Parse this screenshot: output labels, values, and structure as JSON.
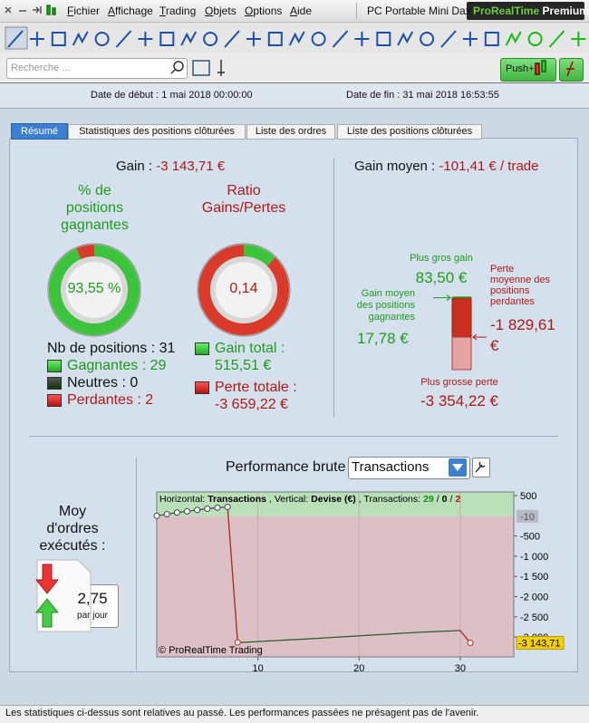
{
  "menu": {
    "items": [
      "Fichier",
      "Affichage",
      "Trading",
      "Objets",
      "Options",
      "Aide"
    ],
    "workspace": "PC Portable Mini Dax",
    "brand": "ProRealTime",
    "edition": "Premium"
  },
  "search": {
    "placeholder": "Recherche ...",
    "push_button": "Push+"
  },
  "dates": {
    "start_label": "Date de début :",
    "start": "1 mai 2018 00:00:00",
    "end_label": "Date de fin :",
    "end": "31 mai 2018 16:53:55"
  },
  "tabs": [
    "Résumé",
    "Statistiques des positions clôturées",
    "Liste des ordres",
    "Liste des positions clôturées"
  ],
  "summary": {
    "gain": {
      "label": "Gain :",
      "value": "-3 143,71 €"
    },
    "win_rate": {
      "label": "% de positions gagnantes",
      "value": 93.55,
      "value_label": "93,55 %"
    },
    "ratio": {
      "label": "Ratio Gains/Pertes",
      "value": 0.14,
      "value_label": "0,14"
    },
    "positions": {
      "label": "Nb de positions :",
      "value": 31
    },
    "winners": {
      "label": "Gagnantes :",
      "value": 29
    },
    "neutral": {
      "label": "Neutres :",
      "value": 0
    },
    "losers": {
      "label": "Perdantes :",
      "value": 2
    },
    "total_gain": {
      "label": "Gain total :",
      "value": "515,51 €"
    },
    "total_loss": {
      "label": "Perte totale :",
      "value": "-3 659,22 €"
    }
  },
  "average": {
    "gain": {
      "label": "Gain moyen :",
      "value": "-101,41 € / trade"
    },
    "max_gain": {
      "label": "Plus gros gain",
      "value": 83.5,
      "value_label": "83,50 €"
    },
    "avg_win": {
      "label": "Gain moyen des positions gagnantes",
      "value": 17.78,
      "value_label": "17,78 €"
    },
    "avg_loss": {
      "label": "Perte moyenne des positions perdantes",
      "value": -1829.61,
      "value_label": "-1 829,61 €"
    },
    "max_loss": {
      "label": "Plus grosse perte",
      "value": -3354.22,
      "value_label": "-3 354,22 €"
    }
  },
  "orders": {
    "label": "Moy d'ordres exécutés :",
    "value": "2,75",
    "unit": "par jour"
  },
  "chart_data": {
    "type": "line",
    "title": "Performance brute",
    "selector": "Transactions",
    "header": {
      "horizontal_label": "Horizontal:",
      "horizontal": "Transactions",
      "vertical_label": ", Vertical:",
      "vertical": "Devise (€)",
      "count_label": ", Transactions:",
      "winners": 29,
      "neutral": 0,
      "losers": 2,
      "separator": "/"
    },
    "credit": "© ProRealTime Trading",
    "x": [
      0,
      1,
      2,
      3,
      4,
      5,
      6,
      7,
      8,
      9,
      10,
      11,
      12,
      13,
      14,
      15,
      16,
      17,
      18,
      19,
      20,
      21,
      22,
      23,
      24,
      25,
      26,
      27,
      28,
      29,
      30,
      31
    ],
    "values": [
      0,
      40,
      80,
      110,
      145,
      175,
      200,
      220,
      -3134,
      -3125,
      -3110,
      -3098,
      -3085,
      -3070,
      -3058,
      -3045,
      -3030,
      -3015,
      -3000,
      -2985,
      -2970,
      -2955,
      -2940,
      -2925,
      -2910,
      -2895,
      -2880,
      -2870,
      -2860,
      -2850,
      -2839,
      -3143.71
    ],
    "color": "#1f5a1f",
    "drop_color": "#c02828",
    "xlim": [
      0,
      35.3
    ],
    "ylim": [
      -3490,
      590
    ],
    "xticks": [
      10,
      20,
      30
    ],
    "yticks": [
      500,
      -500,
      {
        "value": -1000,
        "label": "-1 000"
      },
      {
        "value": -1500,
        "label": "-1 500"
      },
      {
        "value": -2000,
        "label": "-2 000"
      },
      {
        "value": -2500,
        "label": "-2 500"
      },
      {
        "value": -3000,
        "label": "-3 000"
      }
    ],
    "grid": "x",
    "reference": {
      "value": -10,
      "label": "-10"
    },
    "last_label": {
      "value": -3143.71,
      "label": "-3 143,71"
    }
  },
  "footer": "Les statistiques ci-dessus sont relatives au passé. Les performances passées ne présagent pas de l'avenir."
}
